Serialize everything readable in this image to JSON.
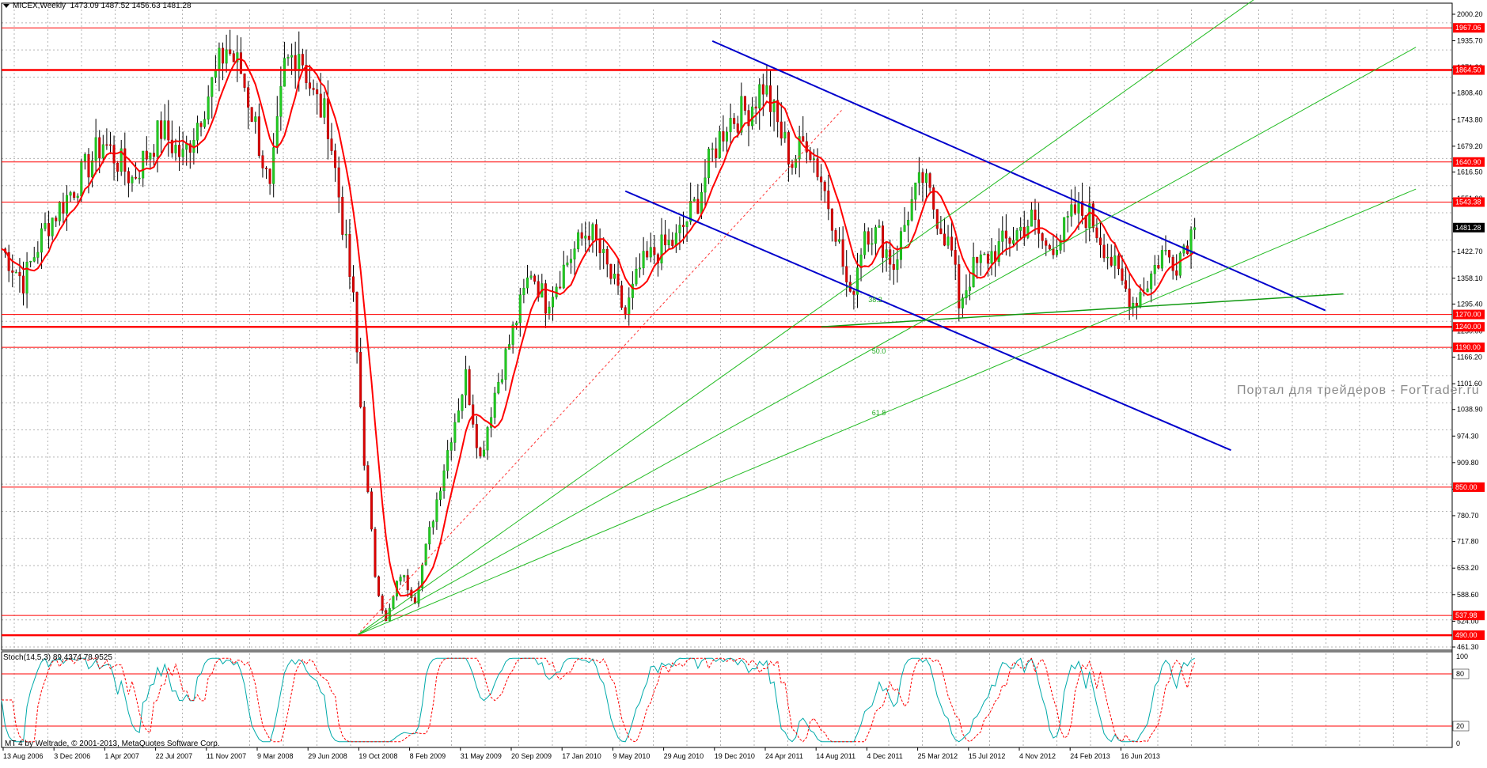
{
  "header": {
    "symbol": "MICEX,Weekly",
    "ohlc": "1473.09 1487.52 1456.63 1481.28"
  },
  "stoch_header": "Stoch(14,5,3) 89.4374 78.9525",
  "copyright": "MT 4 by Weltrade, © 2001-2013, MetaQuotes Software Corp.",
  "watermark": "Портал для трейдеров - ForTrader.ru",
  "colors": {
    "candle_up": "#22cc22",
    "candle_down": "#dd0000",
    "ma": "#ff0000",
    "level": "#ff0000",
    "channel": "#0000cc",
    "fan": "#22bb22",
    "stoch_main": "#00aaaa",
    "stoch_signal": "#ff0000"
  },
  "chart_data": {
    "type": "candlestick",
    "x_tick_labels": [
      "13 Aug 2006",
      "3 Dec 2006",
      "1 Apr 2007",
      "22 Jul 2007",
      "11 Nov 2007",
      "9 Mar 2008",
      "29 Jun 2008",
      "19 Oct 2008",
      "8 Feb 2009",
      "31 May 2009",
      "20 Sep 2009",
      "17 Jan 2010",
      "9 May 2010",
      "29 Aug 2010",
      "19 Dec 2010",
      "24 Apr 2011",
      "14 Aug 2011",
      "4 Dec 2011",
      "25 Mar 2012",
      "15 Jul 2012",
      "4 Nov 2012",
      "24 Feb 2013",
      "16 Jun 2013"
    ],
    "y_tick_labels": [
      "2000.20",
      "1935.70",
      "1871.20",
      "1808.40",
      "1743.80",
      "1679.20",
      "1616.50",
      "1551.90",
      "1422.70",
      "1358.10",
      "1295.40",
      "1230.00",
      "1166.20",
      "1101.60",
      "1038.90",
      "974.30",
      "909.80",
      "845.20",
      "780.70",
      "717.80",
      "653.20",
      "588.60",
      "524.00",
      "461.30"
    ],
    "ylim": [
      461.3,
      2000.2
    ],
    "levels": [
      {
        "value": 1967.06,
        "label": "1967.06"
      },
      {
        "value": 1864.5,
        "label": "1864.50"
      },
      {
        "value": 1640.9,
        "label": "1640.90"
      },
      {
        "value": 1543.38,
        "label": "1543.38"
      },
      {
        "value": 1270.0,
        "label": "1270.00"
      },
      {
        "value": 1240.0,
        "label": "1240.00"
      },
      {
        "value": 1190.0,
        "label": "1190.00"
      },
      {
        "value": 850.0,
        "label": "850.00"
      },
      {
        "value": 537.98,
        "label": "537.98"
      },
      {
        "value": 490.0,
        "label": "490.00"
      }
    ],
    "current_price": {
      "value": 1481.28,
      "label": "1481.28"
    },
    "fib_labels": [
      {
        "text": "38.2",
        "week": 239,
        "price": 1300
      },
      {
        "text": "50.0",
        "week": 240,
        "price": 1175
      },
      {
        "text": "61.8",
        "week": 240,
        "price": 1025
      }
    ],
    "price_path": [
      [
        0,
        1430
      ],
      [
        6,
        1350
      ],
      [
        12,
        1480
      ],
      [
        20,
        1580
      ],
      [
        28,
        1690
      ],
      [
        36,
        1600
      ],
      [
        44,
        1720
      ],
      [
        50,
        1650
      ],
      [
        58,
        1830
      ],
      [
        62,
        1920
      ],
      [
        66,
        1860
      ],
      [
        70,
        1730
      ],
      [
        74,
        1560
      ],
      [
        78,
        1870
      ],
      [
        82,
        1920
      ],
      [
        86,
        1800
      ],
      [
        90,
        1740
      ],
      [
        93,
        1560
      ],
      [
        97,
        1300
      ],
      [
        100,
        920
      ],
      [
        103,
        640
      ],
      [
        106,
        520
      ],
      [
        110,
        640
      ],
      [
        114,
        580
      ],
      [
        118,
        740
      ],
      [
        124,
        980
      ],
      [
        128,
        1120
      ],
      [
        132,
        920
      ],
      [
        136,
        1080
      ],
      [
        140,
        1200
      ],
      [
        146,
        1380
      ],
      [
        150,
        1300
      ],
      [
        156,
        1400
      ],
      [
        162,
        1480
      ],
      [
        168,
        1360
      ],
      [
        172,
        1270
      ],
      [
        176,
        1380
      ],
      [
        180,
        1420
      ],
      [
        186,
        1450
      ],
      [
        192,
        1550
      ],
      [
        196,
        1660
      ],
      [
        200,
        1740
      ],
      [
        206,
        1770
      ],
      [
        210,
        1830
      ],
      [
        214,
        1730
      ],
      [
        218,
        1640
      ],
      [
        222,
        1700
      ],
      [
        226,
        1600
      ],
      [
        230,
        1480
      ],
      [
        234,
        1300
      ],
      [
        238,
        1480
      ],
      [
        242,
        1460
      ],
      [
        246,
        1390
      ],
      [
        250,
        1520
      ],
      [
        254,
        1600
      ],
      [
        258,
        1510
      ],
      [
        262,
        1420
      ],
      [
        264,
        1300
      ],
      [
        268,
        1380
      ],
      [
        272,
        1410
      ],
      [
        276,
        1440
      ],
      [
        280,
        1470
      ],
      [
        284,
        1500
      ],
      [
        288,
        1430
      ],
      [
        292,
        1460
      ],
      [
        296,
        1520
      ],
      [
        300,
        1510
      ],
      [
        304,
        1440
      ],
      [
        308,
        1360
      ],
      [
        312,
        1300
      ],
      [
        316,
        1350
      ],
      [
        320,
        1420
      ],
      [
        324,
        1400
      ],
      [
        326,
        1440
      ],
      [
        329,
        1481
      ]
    ],
    "stoch_levels": [
      {
        "value": 80,
        "label": "80"
      },
      {
        "value": 20,
        "label": "20"
      }
    ],
    "stoch_ylim": [
      0,
      100
    ],
    "stoch_tick_labels": [
      "100",
      "80",
      "20",
      "0"
    ]
  }
}
